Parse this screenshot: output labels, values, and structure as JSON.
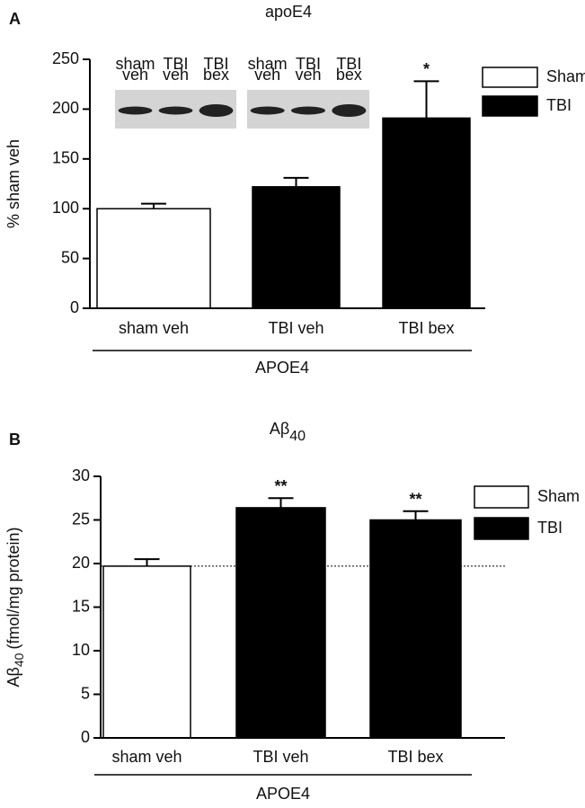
{
  "chart_data": [
    {
      "type": "bar",
      "panel_label": "A",
      "title": "apoE4",
      "ylabel": "% sham veh",
      "categories": [
        "sham veh",
        "TBI veh",
        "TBI bex"
      ],
      "group_label": "APOE4",
      "series": [
        {
          "name": "Sham",
          "color": "#ffffff",
          "values": [
            100,
            null,
            null
          ],
          "errors": [
            5,
            null,
            null
          ]
        },
        {
          "name": "TBI",
          "color": "#000000",
          "values": [
            null,
            122,
            191
          ],
          "errors": [
            null,
            9,
            37
          ]
        }
      ],
      "significance": [
        null,
        null,
        "*"
      ],
      "ylim": [
        0,
        250
      ],
      "yticks": [
        0,
        50,
        100,
        150,
        200,
        250
      ],
      "legend": "upper right",
      "blots": [
        {
          "lanes": [
            [
              "sham",
              "veh"
            ],
            [
              "TBI",
              "veh"
            ],
            [
              "TBI",
              "bex"
            ]
          ]
        },
        {
          "lanes": [
            [
              "sham",
              "veh"
            ],
            [
              "TBI",
              "veh"
            ],
            [
              "TBI",
              "bex"
            ]
          ]
        }
      ]
    },
    {
      "type": "bar",
      "panel_label": "B",
      "title": "Aβ",
      "title_subscript": "40",
      "ylabel": "Aβ",
      "ylabel_subscript": "40",
      "ylabel_suffix": "(fmol/mg protein)",
      "categories": [
        "sham veh",
        "TBI veh",
        "TBI bex"
      ],
      "group_label": "APOE4",
      "series": [
        {
          "name": "Sham",
          "color": "#ffffff",
          "values": [
            19.7,
            null,
            null
          ],
          "errors": [
            0.8,
            null,
            null
          ]
        },
        {
          "name": "TBI",
          "color": "#000000",
          "values": [
            null,
            26.4,
            25
          ],
          "errors": [
            null,
            1.1,
            1
          ]
        }
      ],
      "significance": [
        null,
        "**",
        "**"
      ],
      "reference_line": 19.7,
      "ylim": [
        0,
        30
      ],
      "yticks": [
        0,
        5,
        10,
        15,
        20,
        25,
        30
      ],
      "legend": "upper right"
    }
  ]
}
